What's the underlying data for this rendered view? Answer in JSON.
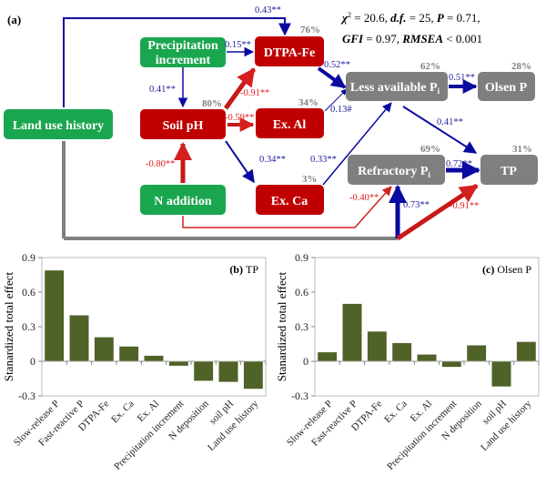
{
  "panel_a": {
    "label": "(a)",
    "stats": {
      "chi": "χ",
      "sup": "2",
      "chi_val": " = 20.6, ",
      "df": "d.f.",
      "df_val": " = 25, ",
      "p": "P",
      "p_val": " = 0.71,",
      "gfi": "GFI",
      "gfi_val": " = 0.97, ",
      "rmsea": "RMSEA",
      "rmsea_val": " < 0.001"
    },
    "nodes": {
      "land": "Land use history",
      "precip1": "Precipitation",
      "precip2": "increment",
      "ph": "Soil pH",
      "n": "N addition",
      "fe": "DTPA-Fe",
      "al": "Ex. Al",
      "ca": "Ex. Ca",
      "less": "Less available P",
      "less_sub": "i",
      "olsen": "Olsen P",
      "refr": "Refractory P",
      "refr_sub": "i",
      "tp": "TP"
    },
    "r2": {
      "fe": "76%",
      "ph": "80%",
      "al": "34%",
      "ca": "3%",
      "less": "62%",
      "olsen": "28%",
      "refr": "69%",
      "tp": "31%"
    },
    "paths": {
      "land_fe": "0.43**",
      "precip_fe": "0.15**",
      "precip_ph": "0.41**",
      "ph_fe": "-0.91**",
      "ph_al": "-0.59**",
      "ph_ca": "0.34**",
      "n_ph": "-0.80**",
      "fe_less": "0.52**",
      "al_less": "0.13#",
      "ca_less": "0.33**",
      "less_olsen": "0.51**",
      "less_tp": "0.41**",
      "refr_tp": "0.72**",
      "n_refr": "-0.40**",
      "land_refr": "0.73**",
      "land_tp": "-0.91**"
    },
    "colors": {
      "driver": "#1aa64f",
      "soil": "#c00000",
      "p_pool": "#7f7f7f",
      "positive": "#0a0aa0",
      "negative": "#d42020"
    }
  },
  "chart_data": [
    {
      "type": "bar",
      "title": "(b) TP",
      "ylabel": "Stanardized total effect",
      "xlabel": "",
      "ylim": [
        -0.3,
        0.9
      ],
      "yticks": [
        "-0.3",
        "0",
        "0.3",
        "0.6",
        "0.9"
      ],
      "grid": false,
      "categories": [
        "Slow-release P",
        "Fast-reactive P",
        "DTPA-Fe",
        "Ex. Ca",
        "Ex. Al",
        "Precipitation increment",
        "N deposition",
        "soil pH",
        "Land use history"
      ],
      "values": [
        0.79,
        0.4,
        0.21,
        0.13,
        0.05,
        -0.04,
        -0.17,
        -0.18,
        -0.24
      ],
      "color": "#4f6228"
    },
    {
      "type": "bar",
      "title": "(c) Olsen P",
      "ylabel": "Stanardized total effect",
      "xlabel": "",
      "ylim": [
        -0.3,
        0.9
      ],
      "yticks": [
        "-0.3",
        "0",
        "0.3",
        "0.6",
        "0.9"
      ],
      "grid": false,
      "categories": [
        "Slow-release P",
        "Fast-reactive P",
        "DTPA-Fe",
        "Ex. Ca",
        "Ex. Al",
        "Precipitation increment",
        "N deposition",
        "soil pH",
        "Land use history"
      ],
      "values": [
        0.08,
        0.5,
        0.26,
        0.16,
        0.06,
        -0.05,
        0.14,
        -0.22,
        0.17
      ],
      "color": "#4f6228"
    }
  ]
}
